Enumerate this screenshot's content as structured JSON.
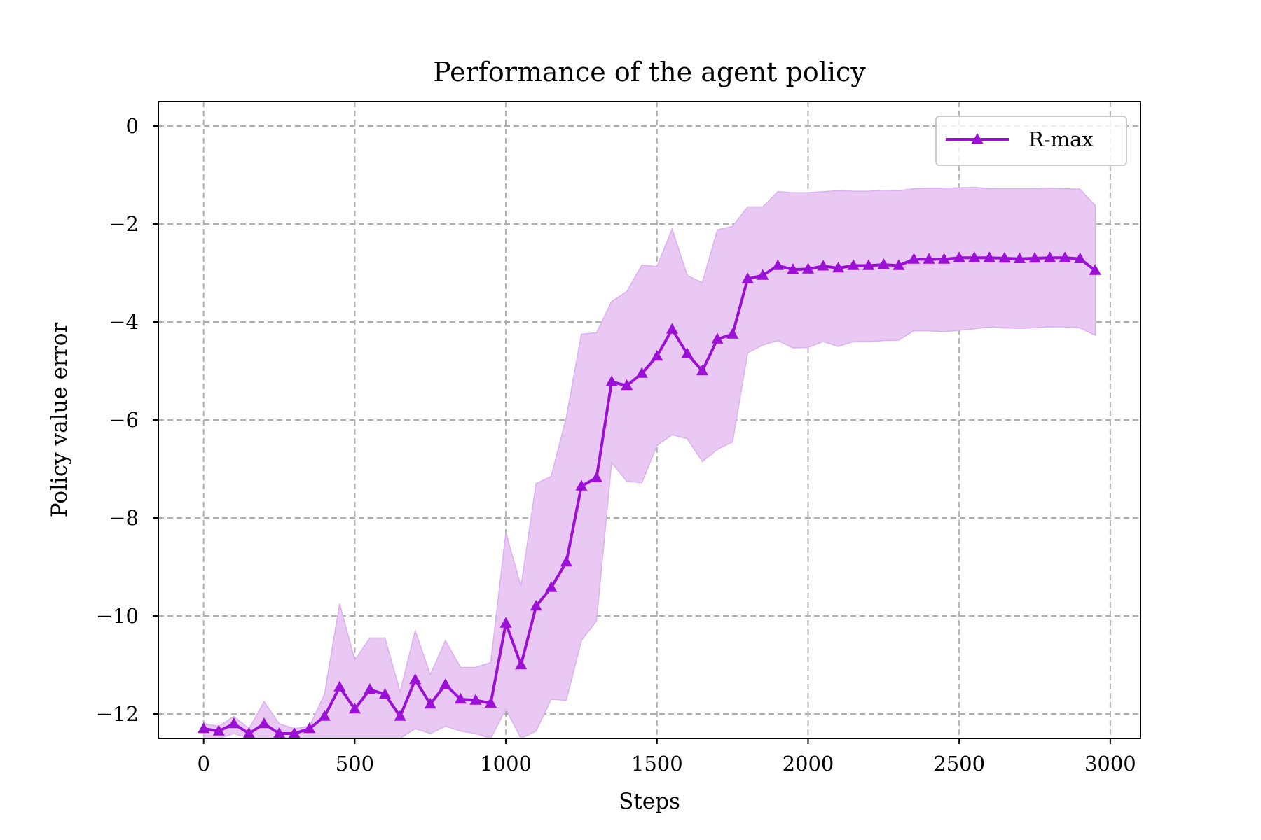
{
  "chart_data": {
    "type": "line",
    "title": "Performance of the agent policy",
    "xlabel": "Steps",
    "ylabel": "Policy value error",
    "xlim": [
      -150,
      3100
    ],
    "ylim": [
      -12.5,
      0.5
    ],
    "xticks": [
      0,
      500,
      1000,
      1500,
      2000,
      2500,
      3000
    ],
    "xtick_labels": [
      "0",
      "500",
      "1000",
      "1500",
      "2000",
      "2500",
      "3000"
    ],
    "yticks": [
      0,
      -2,
      -4,
      -6,
      -8,
      -10,
      -12
    ],
    "ytick_labels": [
      "0",
      "−2",
      "−4",
      "−6",
      "−8",
      "−10",
      "−12"
    ],
    "grid": true,
    "grid_style": "dashed",
    "legend_position": "upper right",
    "colors": {
      "line": "#9b0fd6",
      "band": "#e9c8f4",
      "band_edge": "#dcb0f0",
      "grid": "#b0b0b0"
    },
    "series": [
      {
        "name": "R-max",
        "marker": "triangle",
        "x": [
          0,
          50,
          100,
          150,
          200,
          250,
          300,
          350,
          400,
          450,
          500,
          550,
          600,
          650,
          700,
          750,
          800,
          850,
          900,
          950,
          1000,
          1050,
          1100,
          1150,
          1200,
          1250,
          1300,
          1350,
          1400,
          1450,
          1500,
          1550,
          1600,
          1650,
          1700,
          1750,
          1800,
          1850,
          1900,
          1950,
          2000,
          2050,
          2100,
          2150,
          2200,
          2250,
          2300,
          2350,
          2400,
          2450,
          2500,
          2550,
          2600,
          2650,
          2700,
          2750,
          2800,
          2850,
          2900,
          2950
        ],
        "y": [
          -12.3,
          -12.35,
          -12.2,
          -12.4,
          -12.2,
          -12.4,
          -12.4,
          -12.3,
          -12.05,
          -11.45,
          -11.9,
          -11.5,
          -11.6,
          -12.05,
          -11.3,
          -11.8,
          -11.4,
          -11.7,
          -11.72,
          -11.78,
          -10.15,
          -11.0,
          -9.8,
          -9.42,
          -8.9,
          -7.35,
          -7.18,
          -5.22,
          -5.3,
          -5.05,
          -4.7,
          -4.15,
          -4.65,
          -5.0,
          -4.35,
          -4.25,
          -3.12,
          -3.05,
          -2.85,
          -2.93,
          -2.92,
          -2.86,
          -2.9,
          -2.85,
          -2.85,
          -2.83,
          -2.85,
          -2.72,
          -2.72,
          -2.72,
          -2.69,
          -2.69,
          -2.69,
          -2.7,
          -2.71,
          -2.7,
          -2.69,
          -2.69,
          -2.71,
          -2.95
        ],
        "upper": [
          -12.2,
          -12.25,
          -12.05,
          -12.3,
          -11.75,
          -12.2,
          -12.3,
          -12.25,
          -11.6,
          -9.75,
          -10.9,
          -10.45,
          -10.45,
          -11.55,
          -10.3,
          -11.2,
          -10.5,
          -11.05,
          -11.05,
          -10.95,
          -8.3,
          -9.4,
          -7.3,
          -7.15,
          -5.95,
          -4.25,
          -4.22,
          -3.58,
          -3.38,
          -2.84,
          -2.87,
          -2.1,
          -3.05,
          -3.2,
          -2.12,
          -2.05,
          -1.65,
          -1.65,
          -1.34,
          -1.36,
          -1.36,
          -1.34,
          -1.32,
          -1.33,
          -1.33,
          -1.31,
          -1.32,
          -1.28,
          -1.27,
          -1.27,
          -1.26,
          -1.25,
          -1.28,
          -1.28,
          -1.28,
          -1.28,
          -1.27,
          -1.28,
          -1.29,
          -1.62
        ],
        "lower": [
          -12.5,
          -12.5,
          -12.4,
          -12.5,
          -12.5,
          -12.5,
          -12.5,
          -12.5,
          -12.5,
          -12.5,
          -12.5,
          -12.5,
          -12.5,
          -12.5,
          -12.3,
          -12.4,
          -12.25,
          -12.35,
          -12.4,
          -12.5,
          -11.9,
          -12.5,
          -12.35,
          -11.7,
          -11.72,
          -10.5,
          -10.1,
          -6.87,
          -7.25,
          -7.28,
          -6.52,
          -6.3,
          -6.38,
          -6.85,
          -6.6,
          -6.45,
          -4.63,
          -4.47,
          -4.38,
          -4.53,
          -4.52,
          -4.4,
          -4.5,
          -4.4,
          -4.4,
          -4.38,
          -4.37,
          -4.18,
          -4.18,
          -4.2,
          -4.17,
          -4.14,
          -4.1,
          -4.12,
          -4.13,
          -4.12,
          -4.1,
          -4.1,
          -4.12,
          -4.27
        ]
      }
    ]
  }
}
